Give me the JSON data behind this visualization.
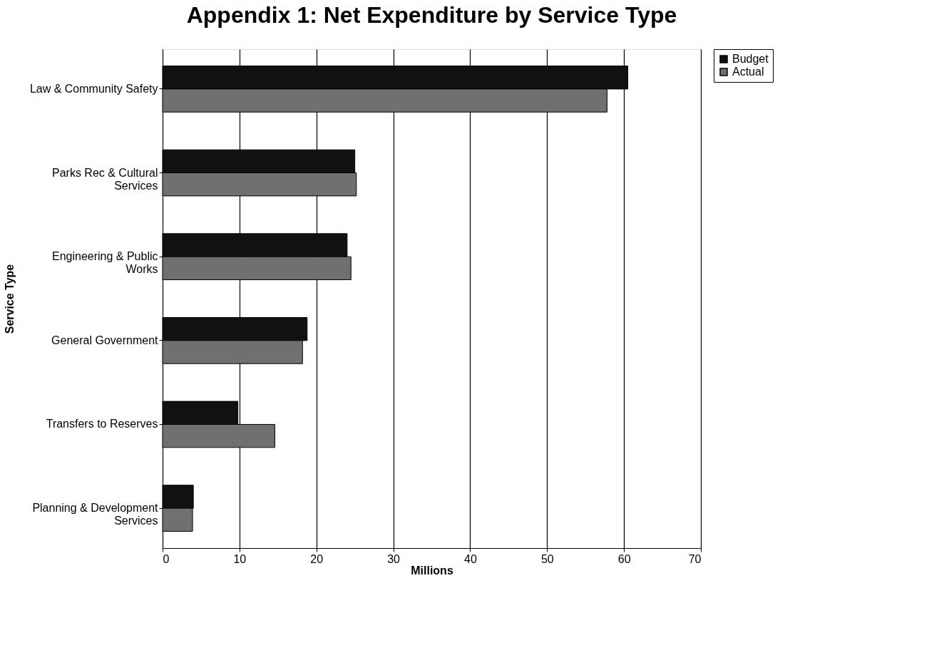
{
  "chart_data": {
    "type": "bar",
    "orientation": "horizontal",
    "title": "Appendix 1: Net Expenditure by Service Type",
    "xlabel": "Millions",
    "ylabel": "Service Type",
    "categories": [
      "Law & Community Safety",
      "Parks Rec & Cultural Services",
      "Engineering & Public Works",
      "General Government",
      "Transfers to Reserves",
      "Planning & Development Services"
    ],
    "series": [
      {
        "name": "Budget",
        "color": "#111111",
        "values": [
          60.5,
          25.0,
          24.0,
          18.8,
          9.8,
          4.0
        ]
      },
      {
        "name": "Actual",
        "color": "#707070",
        "values": [
          57.8,
          25.2,
          24.5,
          18.2,
          14.6,
          3.9
        ]
      }
    ],
    "xlim": [
      0,
      70
    ],
    "xticks": [
      0,
      10,
      20,
      30,
      40,
      50,
      60,
      70
    ],
    "grid": "x",
    "legend": "right"
  }
}
